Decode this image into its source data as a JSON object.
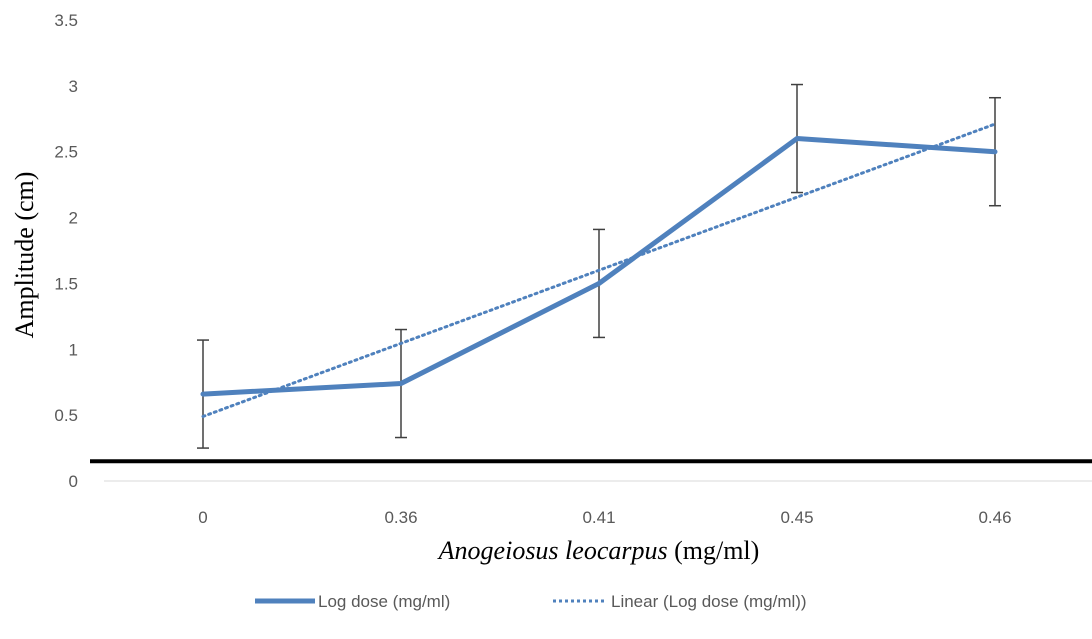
{
  "chart_data": {
    "type": "line",
    "categories": [
      "0",
      "0.36",
      "0.41",
      "0.45",
      "0.46"
    ],
    "ylim": [
      0,
      3.5
    ],
    "yticks": [
      "0",
      "0.5",
      "1",
      "1.5",
      "2",
      "2.5",
      "3",
      "3.5"
    ],
    "xlabel_italic": "Anogeiosus leocarpus",
    "xlabel_rest": " (mg/ml)",
    "ylabel": "Amplitude (cm)",
    "grid": false,
    "legend_position": "bottom",
    "series": [
      {
        "name": "Log dose (mg/ml)",
        "style": "solid",
        "color": "#4F81BD",
        "values": [
          0.66,
          0.74,
          1.5,
          2.6,
          2.5
        ],
        "error": [
          0.41,
          0.41,
          0.41,
          0.41,
          0.41
        ]
      },
      {
        "name": "Linear (Log dose (mg/ml))",
        "style": "dotted-trendline",
        "color": "#4F81BD",
        "values": [
          0.49,
          1.045,
          1.6,
          2.155,
          2.71
        ]
      }
    ],
    "reference_line": {
      "y": 0.15,
      "color": "#000000"
    }
  }
}
